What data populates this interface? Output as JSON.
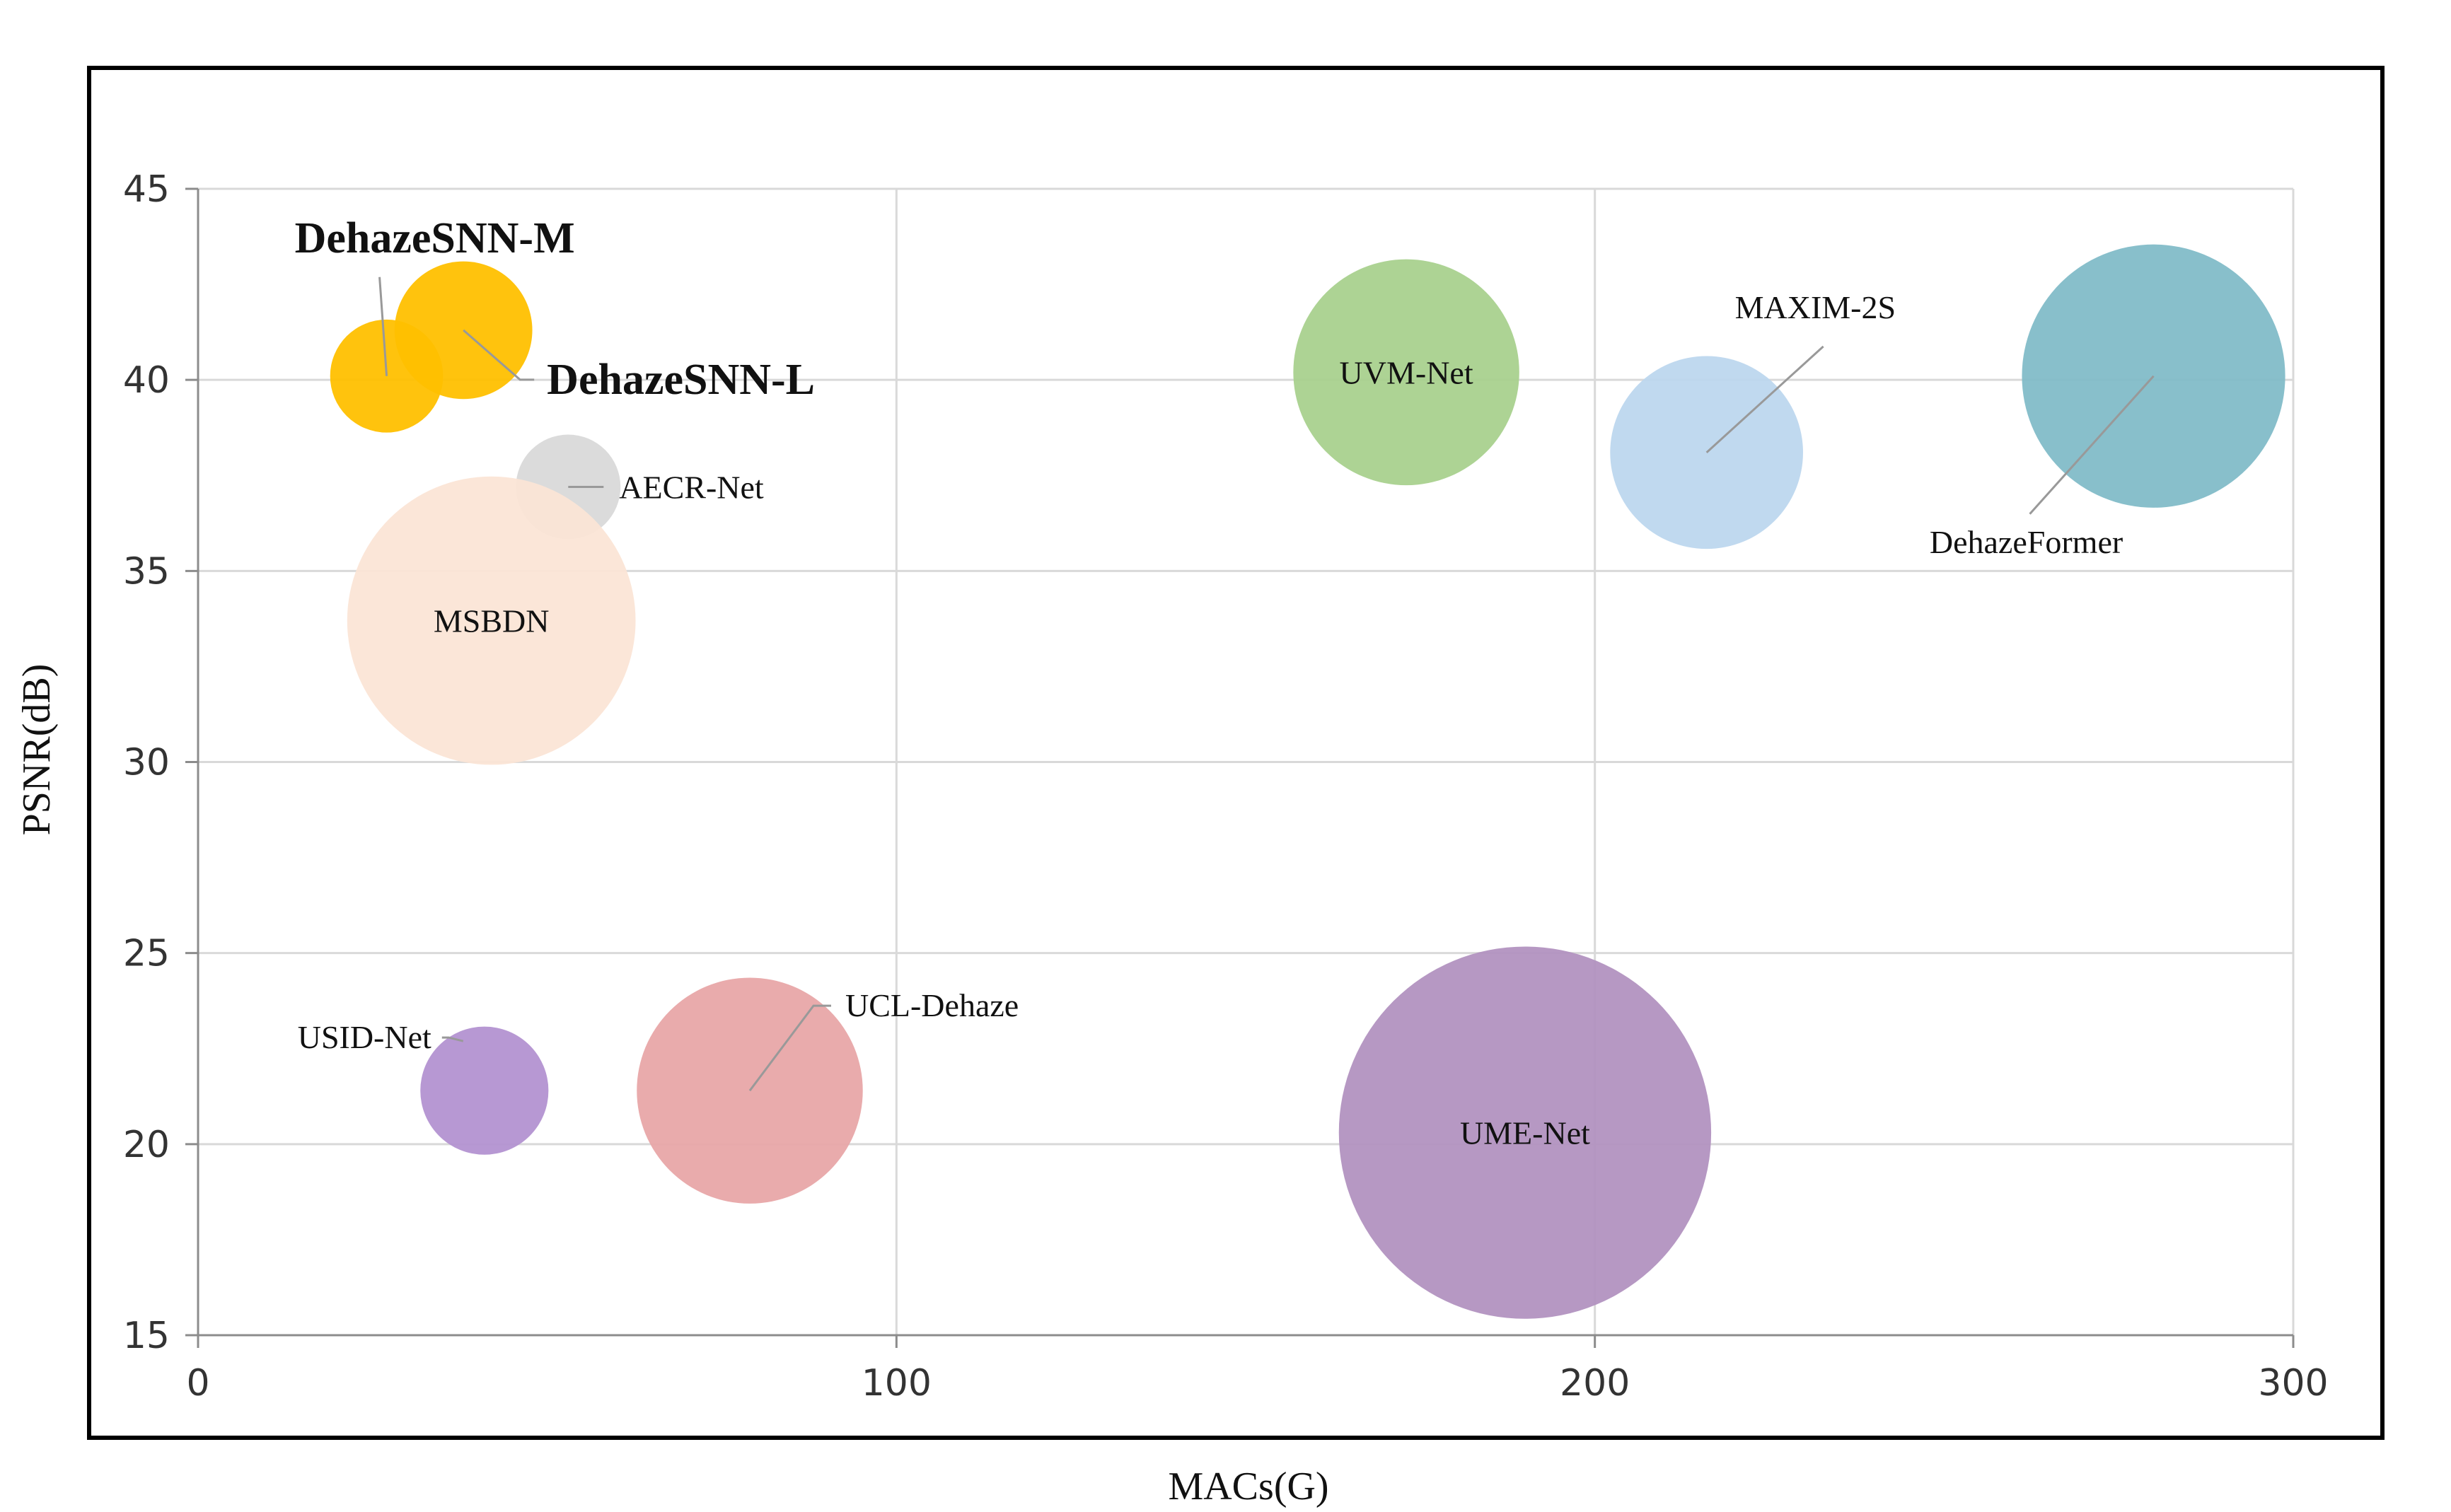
{
  "chart_data": {
    "type": "bubble",
    "title": "",
    "xlabel": "MACs(G)",
    "ylabel": "PSNR(dB)",
    "xlim": [
      0,
      300
    ],
    "ylim": [
      15,
      45
    ],
    "xticks": [
      "0",
      "100",
      "200",
      "300"
    ],
    "yticks": [
      "15",
      "20",
      "25",
      "30",
      "35",
      "40",
      "45"
    ],
    "grid": true,
    "points": [
      {
        "label": "DehazeSNN-M",
        "x": 27,
        "y": 40.1,
        "size": 0.35,
        "color": "#ffc000",
        "bold": true
      },
      {
        "label": "DehazeSNN-L",
        "x": 38,
        "y": 41.3,
        "size": 0.52,
        "color": "#ffc000",
        "bold": true
      },
      {
        "label": "AECR-Net",
        "x": 53,
        "y": 37.2,
        "size": 0.3,
        "color": "#d9d9d9",
        "bold": false
      },
      {
        "label": "MSBDN",
        "x": 42,
        "y": 33.7,
        "size": 2.28,
        "color": "#fbe5d6",
        "bold": false
      },
      {
        "label": "USID-Net",
        "x": 41,
        "y": 21.4,
        "size": 0.45,
        "color": "#b392d1",
        "bold": false
      },
      {
        "label": "UCL-Dehaze",
        "x": 79,
        "y": 21.4,
        "size": 1.4,
        "color": "#e8a6a8",
        "bold": false
      },
      {
        "label": "UVM-Net",
        "x": 173,
        "y": 40.2,
        "size": 1.4,
        "color": "#a9d18e",
        "bold": false
      },
      {
        "label": "MAXIM-2S",
        "x": 216,
        "y": 38.1,
        "size": 1.02,
        "color": "#bdd7ee",
        "bold": false
      },
      {
        "label": "DehazeFormer",
        "x": 280,
        "y": 40.1,
        "size": 1.9,
        "color": "#82bcc8",
        "bold": false
      },
      {
        "label": "UME-Net",
        "x": 190,
        "y": 20.3,
        "size": 3.8,
        "color": "#b292c0",
        "bold": false
      }
    ]
  }
}
